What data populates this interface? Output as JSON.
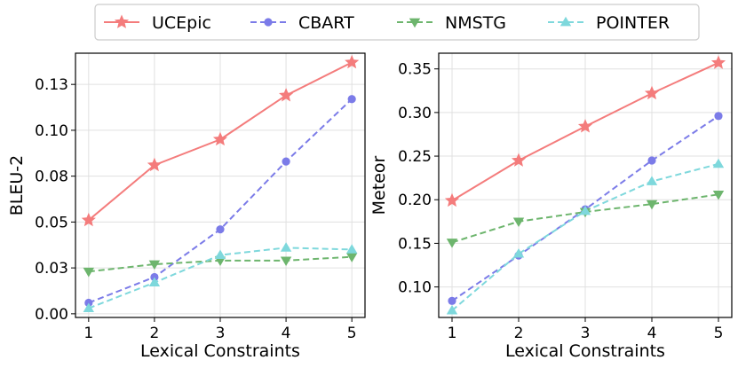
{
  "chart_data": [
    {
      "type": "line",
      "xlabel": "Lexical Constraints",
      "ylabel": "BLEU-2",
      "x": [
        1,
        2,
        3,
        4,
        5
      ],
      "xticks": [
        "1",
        "2",
        "3",
        "4",
        "5"
      ],
      "yticks": [
        "0.00",
        "0.03",
        "0.05",
        "0.08",
        "0.10",
        "0.13"
      ],
      "ytick_values": [
        0.0,
        0.025,
        0.05,
        0.075,
        0.1,
        0.125
      ],
      "ylim": [
        -0.002,
        0.142
      ],
      "xlim": [
        0.8,
        5.2
      ],
      "grid": true,
      "series": [
        {
          "name": "UCEpic",
          "values": [
            0.051,
            0.081,
            0.095,
            0.119,
            0.137
          ]
        },
        {
          "name": "CBART",
          "values": [
            0.006,
            0.02,
            0.046,
            0.083,
            0.117
          ]
        },
        {
          "name": "NMSTG",
          "values": [
            0.023,
            0.027,
            0.029,
            0.029,
            0.031
          ]
        },
        {
          "name": "POINTER",
          "values": [
            0.003,
            0.017,
            0.032,
            0.036,
            0.035
          ]
        }
      ]
    },
    {
      "type": "line",
      "xlabel": "Lexical Constraints",
      "ylabel": "Meteor",
      "x": [
        1,
        2,
        3,
        4,
        5
      ],
      "xticks": [
        "1",
        "2",
        "3",
        "4",
        "5"
      ],
      "yticks": [
        "0.10",
        "0.15",
        "0.20",
        "0.25",
        "0.30",
        "0.35"
      ],
      "ytick_values": [
        0.1,
        0.15,
        0.2,
        0.25,
        0.3,
        0.35
      ],
      "ylim": [
        0.065,
        0.368
      ],
      "xlim": [
        0.8,
        5.2
      ],
      "grid": true,
      "series": [
        {
          "name": "UCEpic",
          "values": [
            0.199,
            0.245,
            0.284,
            0.322,
            0.357
          ]
        },
        {
          "name": "CBART",
          "values": [
            0.084,
            0.136,
            0.189,
            0.245,
            0.296
          ]
        },
        {
          "name": "NMSTG",
          "values": [
            0.151,
            0.175,
            0.186,
            0.195,
            0.206
          ]
        },
        {
          "name": "POINTER",
          "values": [
            0.073,
            0.138,
            0.187,
            0.221,
            0.241
          ]
        }
      ]
    }
  ],
  "legend": {
    "placement": "top-center",
    "entries": [
      "UCEpic",
      "CBART",
      "NMSTG",
      "POINTER"
    ]
  },
  "styles": {
    "UCEpic": {
      "color": "#f47c7c",
      "marker": "star",
      "dash": "solid"
    },
    "CBART": {
      "color": "#7b7be8",
      "marker": "circle",
      "dash": "dashed"
    },
    "NMSTG": {
      "color": "#6db56d",
      "marker": "triangle-down",
      "dash": "dashed"
    },
    "POINTER": {
      "color": "#7ed8dc",
      "marker": "triangle-up",
      "dash": "dashed"
    }
  }
}
